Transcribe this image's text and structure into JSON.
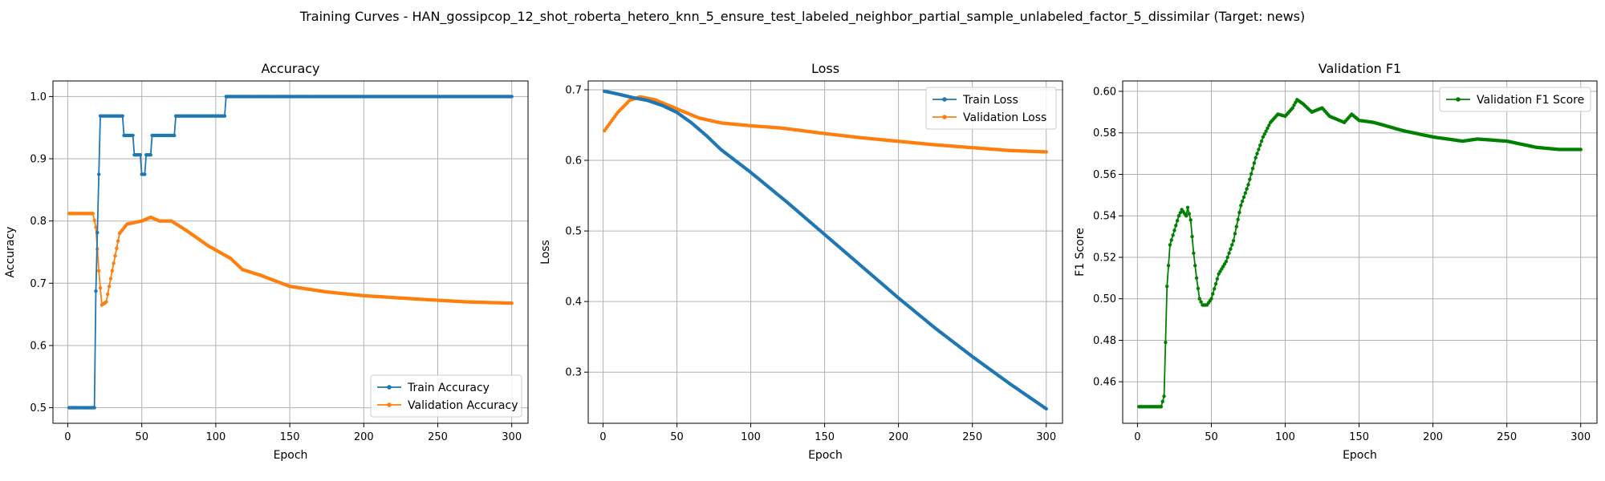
{
  "suptitle": "Training Curves - HAN_gossipcop_12_shot_roberta_hetero_knn_5_ensure_test_labeled_neighbor_partial_sample_unlabeled_factor_5_dissimilar (Target: news)",
  "colors": {
    "blue": "#1f77b4",
    "orange": "#ff7f0e",
    "green": "#008000",
    "grid": "#b0b0b0"
  },
  "chart_data": [
    {
      "type": "line",
      "title": "Accuracy",
      "xlabel": "Epoch",
      "ylabel": "Accuracy",
      "xlim": [
        -10,
        311
      ],
      "ylim": [
        0.475,
        1.025
      ],
      "xticks": [
        0,
        50,
        100,
        150,
        200,
        250,
        300
      ],
      "yticks": [
        0.5,
        0.6,
        0.7,
        0.8,
        0.9,
        1.0
      ],
      "ytick_labels": [
        "0.5",
        "0.6",
        "0.7",
        "0.8",
        "0.9",
        "1.0"
      ],
      "grid": true,
      "legend_position": "lower-right",
      "series": [
        {
          "name": "Train Accuracy",
          "color": "#1f77b4",
          "knots": [
            [
              1,
              0.5
            ],
            [
              18,
              0.5
            ],
            [
              19,
              0.6875
            ],
            [
              20,
              0.78125
            ],
            [
              21,
              0.875
            ],
            [
              22,
              0.96875
            ],
            [
              37,
              0.96875
            ],
            [
              38,
              0.9375
            ],
            [
              44,
              0.9375
            ],
            [
              45,
              0.90625
            ],
            [
              49,
              0.90625
            ],
            [
              50,
              0.875
            ],
            [
              52,
              0.875
            ],
            [
              53,
              0.90625
            ],
            [
              56,
              0.90625
            ],
            [
              57,
              0.9375
            ],
            [
              72,
              0.9375
            ],
            [
              73,
              0.96875
            ],
            [
              106,
              0.96875
            ],
            [
              107,
              1.0
            ],
            [
              300,
              1.0
            ]
          ]
        },
        {
          "name": "Validation Accuracy",
          "color": "#ff7f0e",
          "knots": [
            [
              1,
              0.812
            ],
            [
              17,
              0.812
            ],
            [
              19,
              0.79
            ],
            [
              21,
              0.72
            ],
            [
              23,
              0.665
            ],
            [
              26,
              0.67
            ],
            [
              30,
              0.72
            ],
            [
              35,
              0.78
            ],
            [
              40,
              0.795
            ],
            [
              50,
              0.8
            ],
            [
              56,
              0.806
            ],
            [
              62,
              0.8
            ],
            [
              70,
              0.8
            ],
            [
              80,
              0.785
            ],
            [
              95,
              0.76
            ],
            [
              110,
              0.74
            ],
            [
              118,
              0.722
            ],
            [
              130,
              0.713
            ],
            [
              150,
              0.695
            ],
            [
              175,
              0.686
            ],
            [
              200,
              0.68
            ],
            [
              240,
              0.674
            ],
            [
              270,
              0.67
            ],
            [
              300,
              0.668
            ]
          ]
        }
      ]
    },
    {
      "type": "line",
      "title": "Loss",
      "xlabel": "Epoch",
      "ylabel": "Loss",
      "xlim": [
        -10,
        311
      ],
      "ylim": [
        0.2275,
        0.7125
      ],
      "xticks": [
        0,
        50,
        100,
        150,
        200,
        250,
        300
      ],
      "yticks": [
        0.3,
        0.4,
        0.5,
        0.6,
        0.7
      ],
      "ytick_labels": [
        "0.3",
        "0.4",
        "0.5",
        "0.6",
        "0.7"
      ],
      "grid": true,
      "legend_position": "upper-right",
      "series": [
        {
          "name": "Train Loss",
          "color": "#1f77b4",
          "knots": [
            [
              1,
              0.698
            ],
            [
              10,
              0.694
            ],
            [
              20,
              0.689
            ],
            [
              30,
              0.685
            ],
            [
              40,
              0.678
            ],
            [
              50,
              0.668
            ],
            [
              60,
              0.653
            ],
            [
              70,
              0.635
            ],
            [
              80,
              0.615
            ],
            [
              100,
              0.583
            ],
            [
              125,
              0.54
            ],
            [
              150,
              0.495
            ],
            [
              175,
              0.45
            ],
            [
              200,
              0.405
            ],
            [
              225,
              0.362
            ],
            [
              250,
              0.322
            ],
            [
              275,
              0.284
            ],
            [
              300,
              0.248
            ]
          ]
        },
        {
          "name": "Validation Loss",
          "color": "#ff7f0e",
          "knots": [
            [
              1,
              0.642
            ],
            [
              10,
              0.668
            ],
            [
              18,
              0.685
            ],
            [
              25,
              0.69
            ],
            [
              35,
              0.686
            ],
            [
              50,
              0.673
            ],
            [
              65,
              0.66
            ],
            [
              80,
              0.653
            ],
            [
              100,
              0.649
            ],
            [
              120,
              0.646
            ],
            [
              150,
              0.638
            ],
            [
              175,
              0.632
            ],
            [
              200,
              0.627
            ],
            [
              225,
              0.622
            ],
            [
              250,
              0.618
            ],
            [
              275,
              0.614
            ],
            [
              300,
              0.612
            ]
          ]
        }
      ]
    },
    {
      "type": "line",
      "title": "Validation F1",
      "xlabel": "Epoch",
      "ylabel": "F1 Score",
      "xlim": [
        -10,
        311
      ],
      "ylim": [
        0.44,
        0.605
      ],
      "xticks": [
        0,
        50,
        100,
        150,
        200,
        250,
        300
      ],
      "yticks": [
        0.46,
        0.48,
        0.5,
        0.52,
        0.54,
        0.56,
        0.58,
        0.6
      ],
      "ytick_labels": [
        "0.46",
        "0.48",
        "0.50",
        "0.52",
        "0.54",
        "0.56",
        "0.58",
        "0.60"
      ],
      "grid": true,
      "legend_position": "upper-right",
      "series": [
        {
          "name": "Validation F1 Score",
          "color": "#008000",
          "knots": [
            [
              1,
              0.448
            ],
            [
              16,
              0.448
            ],
            [
              18,
              0.453
            ],
            [
              19,
              0.479
            ],
            [
              20,
              0.506
            ],
            [
              22,
              0.526
            ],
            [
              25,
              0.533
            ],
            [
              28,
              0.54
            ],
            [
              30,
              0.543
            ],
            [
              33,
              0.54
            ],
            [
              34,
              0.544
            ],
            [
              36,
              0.538
            ],
            [
              38,
              0.522
            ],
            [
              40,
              0.51
            ],
            [
              42,
              0.5
            ],
            [
              44,
              0.497
            ],
            [
              47,
              0.497
            ],
            [
              50,
              0.5
            ],
            [
              55,
              0.512
            ],
            [
              60,
              0.518
            ],
            [
              65,
              0.528
            ],
            [
              70,
              0.545
            ],
            [
              75,
              0.555
            ],
            [
              80,
              0.568
            ],
            [
              85,
              0.578
            ],
            [
              90,
              0.585
            ],
            [
              95,
              0.589
            ],
            [
              100,
              0.588
            ],
            [
              105,
              0.592
            ],
            [
              108,
              0.596
            ],
            [
              112,
              0.594
            ],
            [
              118,
              0.59
            ],
            [
              125,
              0.592
            ],
            [
              130,
              0.588
            ],
            [
              140,
              0.585
            ],
            [
              145,
              0.589
            ],
            [
              150,
              0.586
            ],
            [
              160,
              0.585
            ],
            [
              170,
              0.583
            ],
            [
              180,
              0.581
            ],
            [
              200,
              0.578
            ],
            [
              220,
              0.576
            ],
            [
              230,
              0.577
            ],
            [
              250,
              0.576
            ],
            [
              270,
              0.573
            ],
            [
              285,
              0.572
            ],
            [
              300,
              0.572
            ]
          ]
        }
      ]
    }
  ]
}
